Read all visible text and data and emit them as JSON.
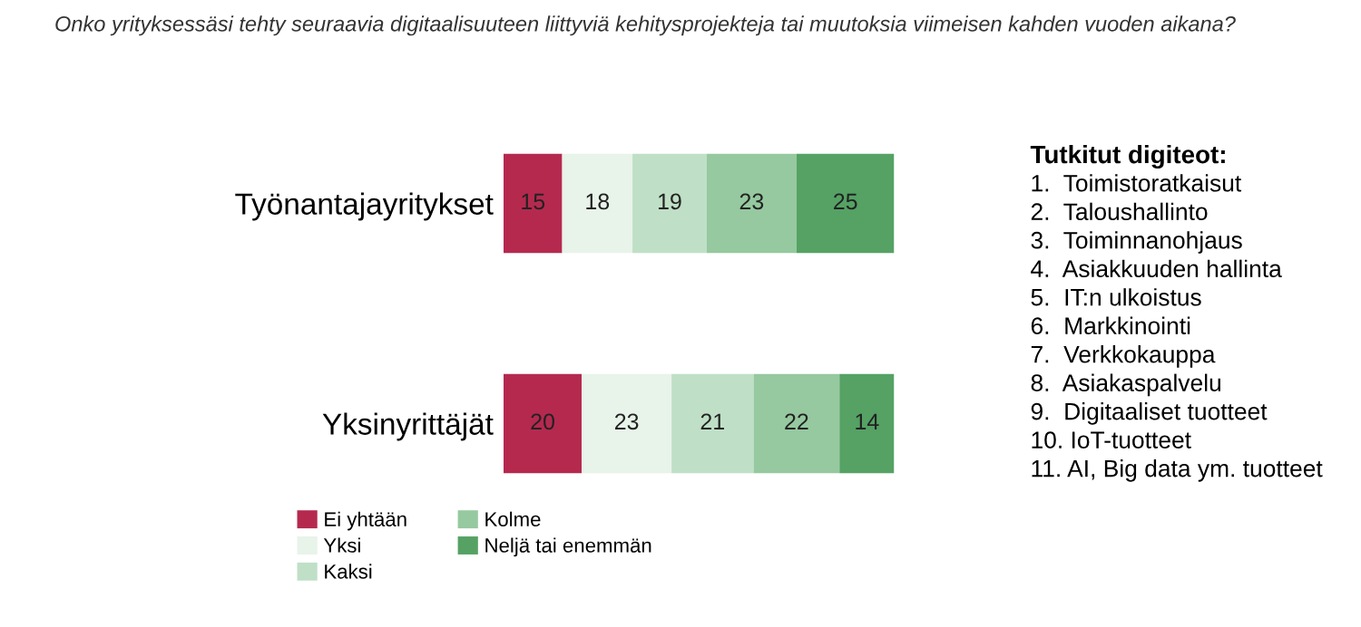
{
  "chart_data": {
    "type": "bar",
    "orientation": "horizontal",
    "stacked": true,
    "data_labels": true,
    "title": "Onko yrityksessäsi tehty seuraavia digitaalisuuteen liittyviä kehitysprojekteja tai muutoksia viimeisen kahden vuoden aikana?",
    "categories": [
      "Työnantajayritykset",
      "Yksinyrittäjät"
    ],
    "series": [
      {
        "name": "Ei yhtään",
        "color": "#b5294f",
        "values": [
          15,
          20
        ]
      },
      {
        "name": "Yksi",
        "color": "#e8f3ea",
        "values": [
          18,
          23
        ]
      },
      {
        "name": "Kaksi",
        "color": "#bfe0c6",
        "values": [
          19,
          21
        ]
      },
      {
        "name": "Kolme",
        "color": "#96c99f",
        "values": [
          23,
          22
        ]
      },
      {
        "name": "Neljä tai enemmän",
        "color": "#55a264",
        "values": [
          25,
          14
        ]
      }
    ],
    "xlim": [
      0,
      100
    ],
    "tick_labels": "y",
    "grid": false,
    "legend": "bottom left",
    "annotations": [
      "Tutkitut digiteot:",
      "1.  Toimistoratkaisut",
      "2.  Taloushallinto",
      "3.  Toiminnanohjaus",
      "4.  Asiakkuuden hallinta",
      "5.  IT:n ulkoistus",
      "6.  Markkinointi",
      "7.  Verkkokauppa",
      "8.  Asiakaspalvelu",
      "9.  Digitaaliset tuotteet",
      "10. IoT-tuotteet",
      "11. AI, Big data ym. tuotteet"
    ]
  }
}
